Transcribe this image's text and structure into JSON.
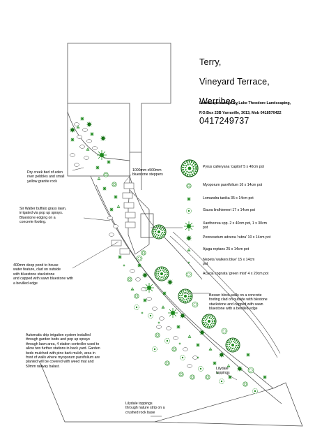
{
  "client": {
    "name": "Terry,",
    "address_line1": "Vineyard Terrace,",
    "address_line2": "Werribee,",
    "phone": "0417249737"
  },
  "designer": {
    "line1": "Landscape design by Luke Theodore Landscaping,",
    "line2": "P.O.Box 23B Yarraville, 3013, Mob 0418570422"
  },
  "plants": [
    {
      "label": "Pyrus calleryana 'capitol' 5 x 40cm pot",
      "icon": "large-tree-icon"
    },
    {
      "label": "Myoporum parvifolium 16 x 14cm pot",
      "icon": "groundcover-icon"
    },
    {
      "label": "Lomandra tanika 35 x 14cm pot",
      "icon": "grass-icon"
    },
    {
      "label": "Gaura lindhiemeri 17 x 14cm pot",
      "icon": "perennial-icon"
    },
    {
      "label": "Xanthorrea spp.  2 x 40cm pot, 1 x 30cm\npot",
      "icon": "grass-tree-icon"
    },
    {
      "label": "Pennesetum advena 'rubra' 10 x 14cm pot",
      "icon": "ornamental-grass-icon"
    },
    {
      "label": "Ajuga reptans 25 x 14cm pot",
      "icon": "ajuga-icon"
    },
    {
      "label": "Nepeta 'walkers blue' 15 x 14cm\npot",
      "icon": "nepeta-icon"
    },
    {
      "label": "Acacia cognata 'green mist' 4 x 20cm pot",
      "icon": "acacia-icon"
    }
  ],
  "notes": {
    "dry_creek": "Dry creek bed of eden\nriver pebbles and small\nyellow granite rock",
    "steppers": "1000mm x500mm\nbluestone steppers",
    "lawn": "Sir Walter buffalo grass lawn,\nirrigated via pop up sprays.\nBluestone edging on a\nconcrete footing.",
    "pond": "400mm deep pond to house\nwater feature, clad on outside\nwith bluestone stackstone\nand capped with sawn bluestone with\na bevilled edge",
    "walls": "Besser block walls on a concrete\nfooting clad on outside with blestone\nstackstone and capped with sawn\nbluestone with a bevilled edge",
    "irrigation": "Automatic drip irrigation system installed\nthrough garden beds and pop up sprays\nthrough lawn area, 4 station controller used to\nallow two further stations in back yard.  Garden\nbeds mulched with pine bark mulch, area in\nfront of walls where myoporum parvifolium are\nplanted will be covered with weed mat and\n50mm railway balast.",
    "lilydale_toppings": "Lilydale\ntoppings",
    "lilydale_path": "Lilydale toppings\nthrough nature strip on a\ncrushed rock base"
  },
  "colors": {
    "plant_green": "#1e8a1e",
    "plant_dark": "#0d5c0d",
    "line": "#555555"
  }
}
